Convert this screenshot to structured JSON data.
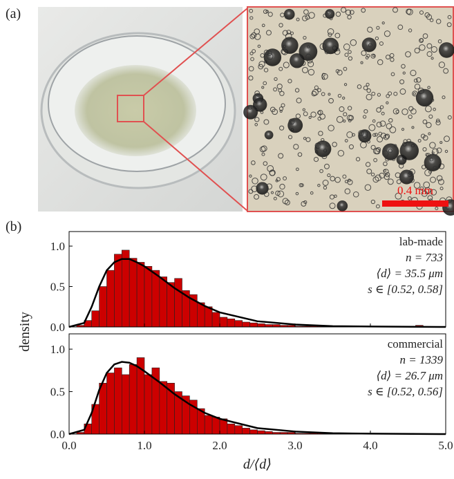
{
  "panel_labels": [
    "(a)",
    "(b)"
  ],
  "scale_bar": "0.4 mm",
  "chart_data": [
    {
      "type": "histogram",
      "annotations": [
        "lab-made",
        "n = 733",
        "⟨d⟩ = 35.5 μm",
        "s ∈ [0.52, 0.58]"
      ],
      "bins": [
        0,
        0.1,
        0.2,
        0.3,
        0.4,
        0.5,
        0.6,
        0.7,
        0.8,
        0.9,
        1.0,
        1.1,
        1.2,
        1.3,
        1.4,
        1.5,
        1.6,
        1.7,
        1.8,
        1.9,
        2.0,
        2.1,
        2.2,
        2.3,
        2.4,
        2.5,
        2.6,
        2.7,
        2.8,
        2.9,
        3.0,
        3.1,
        3.2,
        3.3,
        3.4,
        3.5,
        3.6,
        3.7,
        3.8,
        3.9,
        4.0,
        4.1,
        4.2,
        4.3,
        4.4,
        4.5,
        4.6,
        4.7,
        4.8,
        4.9,
        5.0
      ],
      "counts": [
        0,
        0.02,
        0.08,
        0.2,
        0.5,
        0.7,
        0.9,
        0.95,
        0.85,
        0.8,
        0.75,
        0.7,
        0.62,
        0.55,
        0.6,
        0.45,
        0.4,
        0.3,
        0.25,
        0.18,
        0.12,
        0.1,
        0.08,
        0.06,
        0.05,
        0.04,
        0.03,
        0.03,
        0.02,
        0.02,
        0.01,
        0.01,
        0.01,
        0.01,
        0,
        0.01,
        0,
        0.01,
        0,
        0,
        0.01,
        0,
        0,
        0,
        0,
        0,
        0.02,
        0,
        0,
        0
      ],
      "color": "#cc0000",
      "fit": {
        "x": [
          0,
          0.2,
          0.3,
          0.4,
          0.5,
          0.6,
          0.7,
          0.8,
          0.9,
          1.0,
          1.2,
          1.4,
          1.6,
          1.8,
          2.0,
          2.5,
          3.0,
          3.5,
          4.0,
          5.0
        ],
        "y": [
          0,
          0.05,
          0.25,
          0.5,
          0.7,
          0.8,
          0.84,
          0.84,
          0.8,
          0.75,
          0.62,
          0.48,
          0.36,
          0.26,
          0.18,
          0.07,
          0.03,
          0.01,
          0.005,
          0
        ],
        "color": "#000000"
      },
      "xlim": [
        0,
        5
      ],
      "ylim": [
        0,
        1.18
      ],
      "xticks": [
        0,
        1,
        2,
        3,
        4,
        5
      ],
      "yticks": [
        {
          "value": 0,
          "label": "0.0"
        },
        {
          "value": 0.5,
          "label": "0.5"
        },
        {
          "value": 1,
          "label": "1.0"
        }
      ],
      "ylabel": "density"
    },
    {
      "type": "histogram",
      "annotations": [
        "commercial",
        "n = 1339",
        "⟨d⟩ = 26.7 μm",
        "s ∈ [0.52, 0.56]"
      ],
      "bins": [
        0,
        0.1,
        0.2,
        0.3,
        0.4,
        0.5,
        0.6,
        0.7,
        0.8,
        0.9,
        1.0,
        1.1,
        1.2,
        1.3,
        1.4,
        1.5,
        1.6,
        1.7,
        1.8,
        1.9,
        2.0,
        2.1,
        2.2,
        2.3,
        2.4,
        2.5,
        2.6,
        2.7,
        2.8,
        2.9,
        3.0,
        3.1,
        3.2,
        3.3,
        3.4,
        3.5,
        3.6,
        3.7,
        3.8,
        3.9,
        4.0,
        4.1,
        4.2,
        4.3,
        4.4,
        4.5,
        4.6,
        4.7,
        4.8,
        4.9,
        5.0
      ],
      "counts": [
        0,
        0.02,
        0.12,
        0.35,
        0.6,
        0.72,
        0.78,
        0.7,
        0.82,
        0.9,
        0.7,
        0.78,
        0.62,
        0.6,
        0.5,
        0.45,
        0.4,
        0.3,
        0.22,
        0.2,
        0.18,
        0.12,
        0.1,
        0.07,
        0.05,
        0.04,
        0.03,
        0.02,
        0.02,
        0.02,
        0.01,
        0.01,
        0.01,
        0.01,
        0,
        0,
        0,
        0,
        0,
        0,
        0,
        0,
        0,
        0,
        0,
        0,
        0,
        0,
        0,
        0
      ],
      "color": "#cc0000",
      "fit": {
        "x": [
          0,
          0.2,
          0.3,
          0.4,
          0.5,
          0.6,
          0.7,
          0.8,
          0.9,
          1.0,
          1.2,
          1.4,
          1.6,
          1.8,
          2.0,
          2.5,
          3.0,
          3.5,
          4.0,
          5.0
        ],
        "y": [
          0,
          0.05,
          0.25,
          0.52,
          0.72,
          0.82,
          0.85,
          0.84,
          0.8,
          0.74,
          0.61,
          0.47,
          0.35,
          0.25,
          0.18,
          0.07,
          0.03,
          0.01,
          0.005,
          0
        ],
        "color": "#000000"
      },
      "xlim": [
        0,
        5
      ],
      "ylim": [
        0,
        1.18
      ],
      "xticks": [
        {
          "value": 0,
          "label": "0.0"
        },
        {
          "value": 1,
          "label": "1.0"
        },
        {
          "value": 2,
          "label": "2.0"
        },
        {
          "value": 3,
          "label": "3.0"
        },
        {
          "value": 4,
          "label": "4.0"
        },
        {
          "value": 5,
          "label": "5.0"
        }
      ],
      "yticks": [
        {
          "value": 0,
          "label": "0.0"
        },
        {
          "value": 0.5,
          "label": "0.5"
        },
        {
          "value": 1,
          "label": "1.0"
        }
      ],
      "xlabel": "d/⟨d⟩"
    }
  ]
}
